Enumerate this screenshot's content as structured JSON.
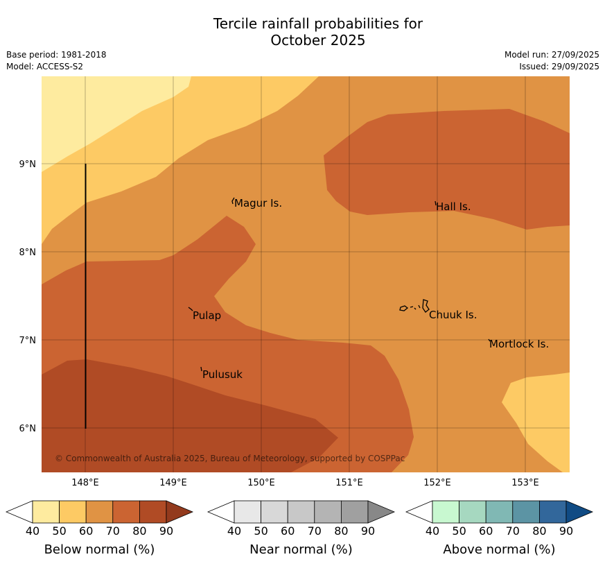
{
  "title": {
    "line1": "Tercile rainfall probabilities for",
    "line2": "October 2025"
  },
  "meta": {
    "base_period": "Base period: 1981-2018",
    "model": "Model: ACCESS-S2",
    "model_run": "Model run: 27/09/2025",
    "issued": "Issued: 29/09/2025"
  },
  "map": {
    "lon_labels": [
      "148°E",
      "149°E",
      "150°E",
      "151°E",
      "152°E",
      "153°E"
    ],
    "lat_labels": [
      "9°N",
      "8°N",
      "7°N",
      "6°N"
    ],
    "places": [
      "Magur Is.",
      "Hall Is.",
      "Pulap",
      "Chuuk Is.",
      "Mortlock Is.",
      "Pulusuk"
    ],
    "copyright": "© Commonwealth of Australia 2025, Bureau of Meteorology, supported by COSPPac"
  },
  "colorbars": [
    {
      "label": "Below normal (%)",
      "ticks": [
        "40",
        "50",
        "60",
        "70",
        "80",
        "90"
      ],
      "colors": [
        "#ffffff",
        "#feeb9f",
        "#fdca64",
        "#e09344",
        "#cb6432",
        "#b04b25",
        "#933a1d"
      ]
    },
    {
      "label": "Near normal (%)",
      "ticks": [
        "40",
        "50",
        "60",
        "70",
        "80",
        "90"
      ],
      "colors": [
        "#ffffff",
        "#e8e8e8",
        "#d8d8d8",
        "#c8c8c8",
        "#b4b4b4",
        "#a0a0a0",
        "#888888"
      ]
    },
    {
      "label": "Above normal (%)",
      "ticks": [
        "40",
        "50",
        "60",
        "70",
        "80",
        "90"
      ],
      "colors": [
        "#ffffff",
        "#c8f8d0",
        "#a6d8c0",
        "#80b8b4",
        "#5c94a4",
        "#32679b",
        "#104b84"
      ]
    }
  ],
  "legend_palette": {
    "below_50_60": "#fdca64",
    "below_40_50": "#feeb9f",
    "below_60_70": "#e09344",
    "below_70_80": "#cb6432",
    "below_80_90": "#b04b25"
  }
}
